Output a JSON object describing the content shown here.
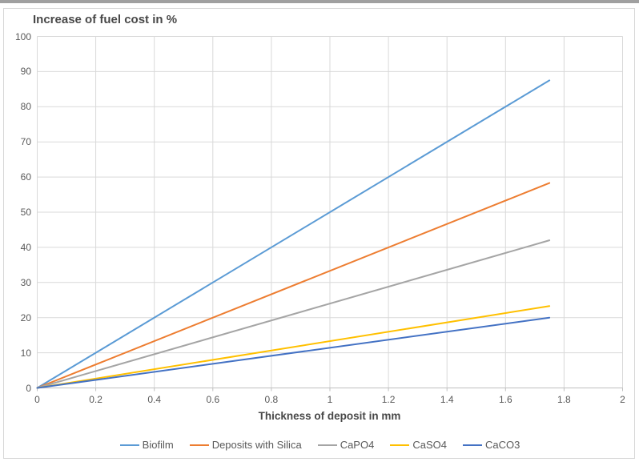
{
  "chart": {
    "title": "Increase of fuel cost in %",
    "xlabel": "Thickness of deposit in mm"
  },
  "chart_data": {
    "type": "line",
    "title": "Increase of fuel cost in %",
    "xlabel": "Thickness of deposit in mm",
    "ylabel": "Increase of fuel cost in %",
    "xlim": [
      0,
      2
    ],
    "ylim": [
      0,
      100
    ],
    "x_ticks": [
      0,
      0.2,
      0.4,
      0.6,
      0.8,
      1,
      1.2,
      1.4,
      1.6,
      1.8,
      2
    ],
    "y_ticks": [
      0,
      10,
      20,
      30,
      40,
      50,
      60,
      70,
      80,
      90,
      100
    ],
    "grid": true,
    "legend_position": "bottom",
    "series": [
      {
        "name": "Biofilm",
        "color": "#5B9BD5",
        "x": [
          0,
          1.75
        ],
        "y": [
          0,
          87.5
        ]
      },
      {
        "name": "Deposits with Silica",
        "color": "#ED7D31",
        "x": [
          0,
          1.75
        ],
        "y": [
          0,
          58.3
        ]
      },
      {
        "name": "CaPO4",
        "color": "#A5A5A5",
        "x": [
          0,
          1.75
        ],
        "y": [
          0,
          42
        ]
      },
      {
        "name": "CaSO4",
        "color": "#FFC000",
        "x": [
          0,
          1.75
        ],
        "y": [
          0,
          23.3
        ]
      },
      {
        "name": "CaCO3",
        "color": "#4472C4",
        "x": [
          0,
          1.75
        ],
        "y": [
          0,
          20
        ]
      }
    ]
  },
  "colors": {
    "grid": "#D9D9D9",
    "axis_line": "#BFBFBF",
    "tick_label": "#595959",
    "title_text": "#484848",
    "legend_text": "#595959",
    "frame_border": "#D7D7D7",
    "top_strip": "#A0A0A0",
    "background": "#FFFFFF"
  }
}
